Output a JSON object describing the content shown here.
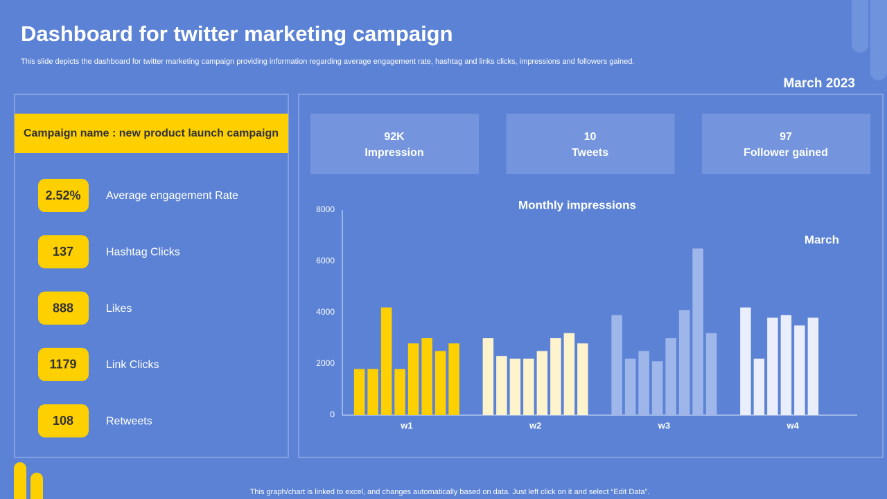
{
  "header": {
    "title": "Dashboard for twitter marketing campaign",
    "subtitle": "This slide depicts the dashboard for twitter marketing campaign providing information regarding average engagement rate, hashtag and links clicks, impressions and followers gained.",
    "period": "March 2023"
  },
  "campaign": "Campaign name : new product launch campaign",
  "stats": [
    {
      "value": "2.52%",
      "label": "Average engagement Rate"
    },
    {
      "value": "137",
      "label": "Hashtag Clicks"
    },
    {
      "value": "888",
      "label": "Likes"
    },
    {
      "value": "1179",
      "label": "Link Clicks"
    },
    {
      "value": "108",
      "label": "Retweets"
    }
  ],
  "kpis": [
    {
      "value": "92K",
      "label": "Impression"
    },
    {
      "value": "10",
      "label": "Tweets"
    },
    {
      "value": "97",
      "label": "Follower gained"
    }
  ],
  "chart_data": {
    "type": "bar",
    "title": "Monthly impressions",
    "annotation": "March",
    "categories": [
      "w1",
      "w2",
      "w3",
      "w4"
    ],
    "category_colors": [
      "#ffd000",
      "#fdf3cc",
      "#9fb6ea",
      "#e9eefa"
    ],
    "series": [
      {
        "values": [
          1800,
          3000,
          3900,
          4200
        ]
      },
      {
        "values": [
          1800,
          2300,
          2200,
          2200
        ]
      },
      {
        "values": [
          4200,
          2200,
          2500,
          3800
        ]
      },
      {
        "values": [
          1800,
          2200,
          2100,
          3900
        ]
      },
      {
        "values": [
          2800,
          2500,
          3000,
          3500
        ]
      },
      {
        "values": [
          3000,
          3000,
          4100,
          3800
        ]
      },
      {
        "values": [
          2500,
          3200,
          6500,
          null
        ]
      },
      {
        "values": [
          2800,
          2800,
          3200,
          null
        ]
      }
    ],
    "ylim": [
      0,
      8000
    ],
    "yticks": [
      0,
      2000,
      4000,
      6000,
      8000
    ],
    "grid": false
  },
  "footer": "This graph/chart is linked to excel, and changes automatically based on data. Just left click on it and select “Edit Data”."
}
